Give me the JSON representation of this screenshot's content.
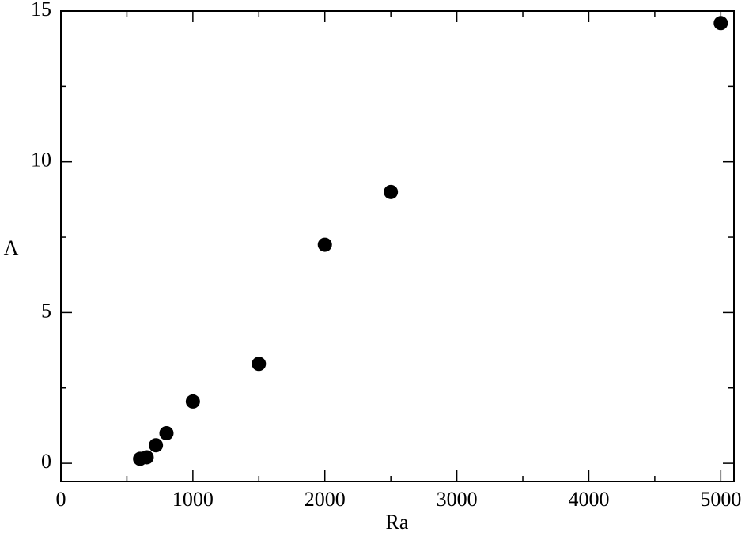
{
  "chart_data": {
    "type": "scatter",
    "xlabel": "Ra",
    "ylabel": "Λ",
    "x": [
      600,
      650,
      720,
      800,
      1000,
      1500,
      2000,
      2500,
      5000
    ],
    "values": [
      0.15,
      0.2,
      0.6,
      1.0,
      2.05,
      3.3,
      7.25,
      9.0,
      14.6
    ],
    "color": "#000000",
    "xlim": [
      0,
      5100
    ],
    "xticks": [
      0,
      1000,
      2000,
      3000,
      4000,
      5000
    ],
    "ylim": [
      -0.6,
      15
    ],
    "yticks": [
      0,
      5,
      10,
      15
    ],
    "grid": false
  }
}
